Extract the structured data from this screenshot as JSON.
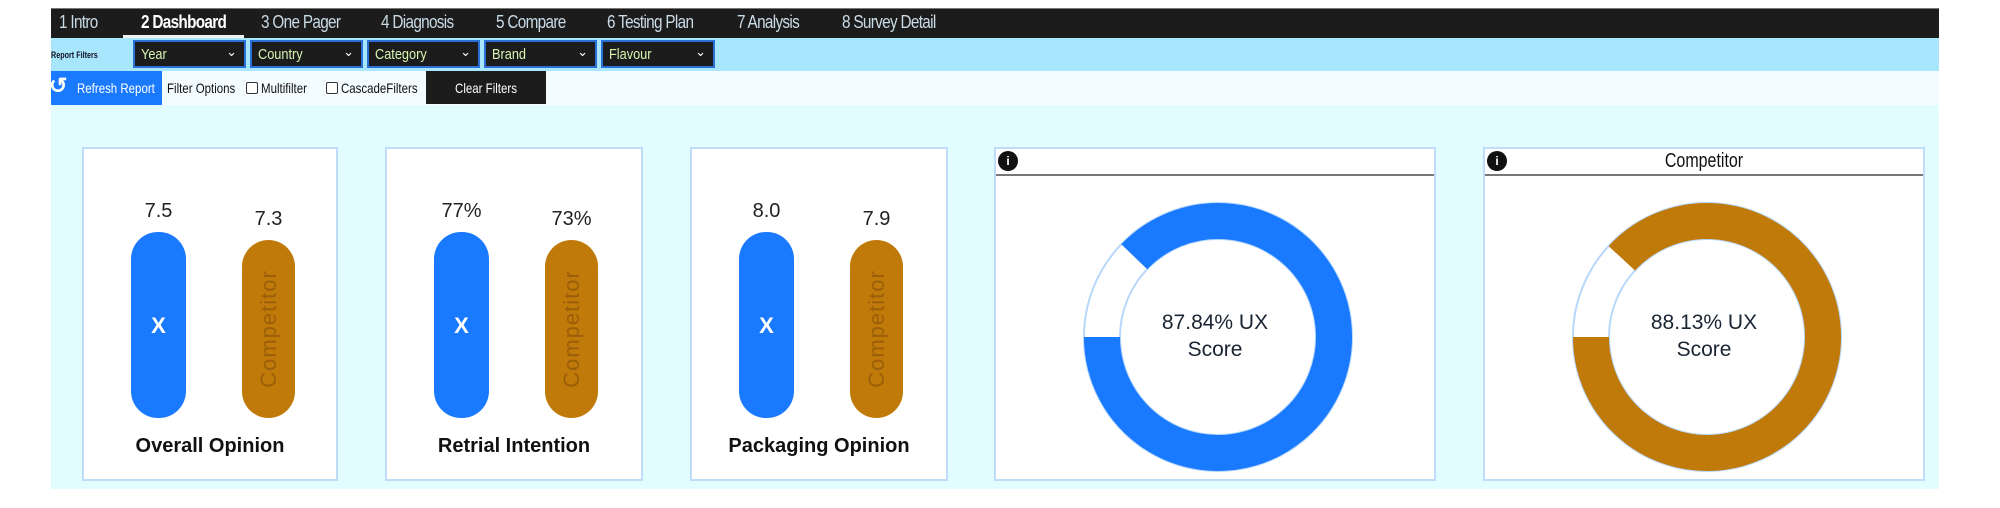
{
  "nav": {
    "tabs": [
      {
        "label": "1 Intro"
      },
      {
        "label": "2 Dashboard",
        "active": true
      },
      {
        "label": "3 One Pager"
      },
      {
        "label": "4 Diagnosis"
      },
      {
        "label": "5 Compare"
      },
      {
        "label": "6 Testing Plan"
      },
      {
        "label": "7 Analysis"
      },
      {
        "label": "8 Survey Detail"
      }
    ]
  },
  "filters": {
    "label": "Report Filters",
    "dropdowns": [
      {
        "label": "Year"
      },
      {
        "label": "Country"
      },
      {
        "label": "Category"
      },
      {
        "label": "Brand"
      },
      {
        "label": "Flavour"
      }
    ]
  },
  "options": {
    "refresh_label": "Refresh Report",
    "filter_options_label": "Filter Options",
    "multifilter_label": "Multifilter",
    "multifilter_checked": false,
    "cascade_label": "CascadeFilters",
    "cascade_checked": false,
    "clear_label": "Clear Filters"
  },
  "colors": {
    "brand": "#1a7aff",
    "competitor": "#c07a0a"
  },
  "bar_cards": [
    {
      "title": "Overall Opinion",
      "brand": {
        "value": 7.5,
        "label": "7.5",
        "bar_text": "X"
      },
      "competitor": {
        "value": 7.3,
        "label": "7.3",
        "bar_text": "Competitor"
      }
    },
    {
      "title": "Retrial Intention",
      "brand": {
        "value": 77,
        "label": "77%",
        "bar_text": "X"
      },
      "competitor": {
        "value": 73,
        "label": "73%",
        "bar_text": "Competitor"
      }
    },
    {
      "title": "Packaging Opinion",
      "brand": {
        "value": 8.0,
        "label": "8.0",
        "bar_text": "X"
      },
      "competitor": {
        "value": 7.9,
        "label": "7.9",
        "bar_text": "Competitor"
      }
    }
  ],
  "donut_cards": [
    {
      "header": "",
      "percent": 87.84,
      "line1": "87.84% UX",
      "line2": "Score",
      "color": "#1a7aff"
    },
    {
      "header": "Competitor",
      "percent": 88.13,
      "line1": "88.13% UX",
      "line2": "Score",
      "color": "#c07a0a"
    }
  ]
}
